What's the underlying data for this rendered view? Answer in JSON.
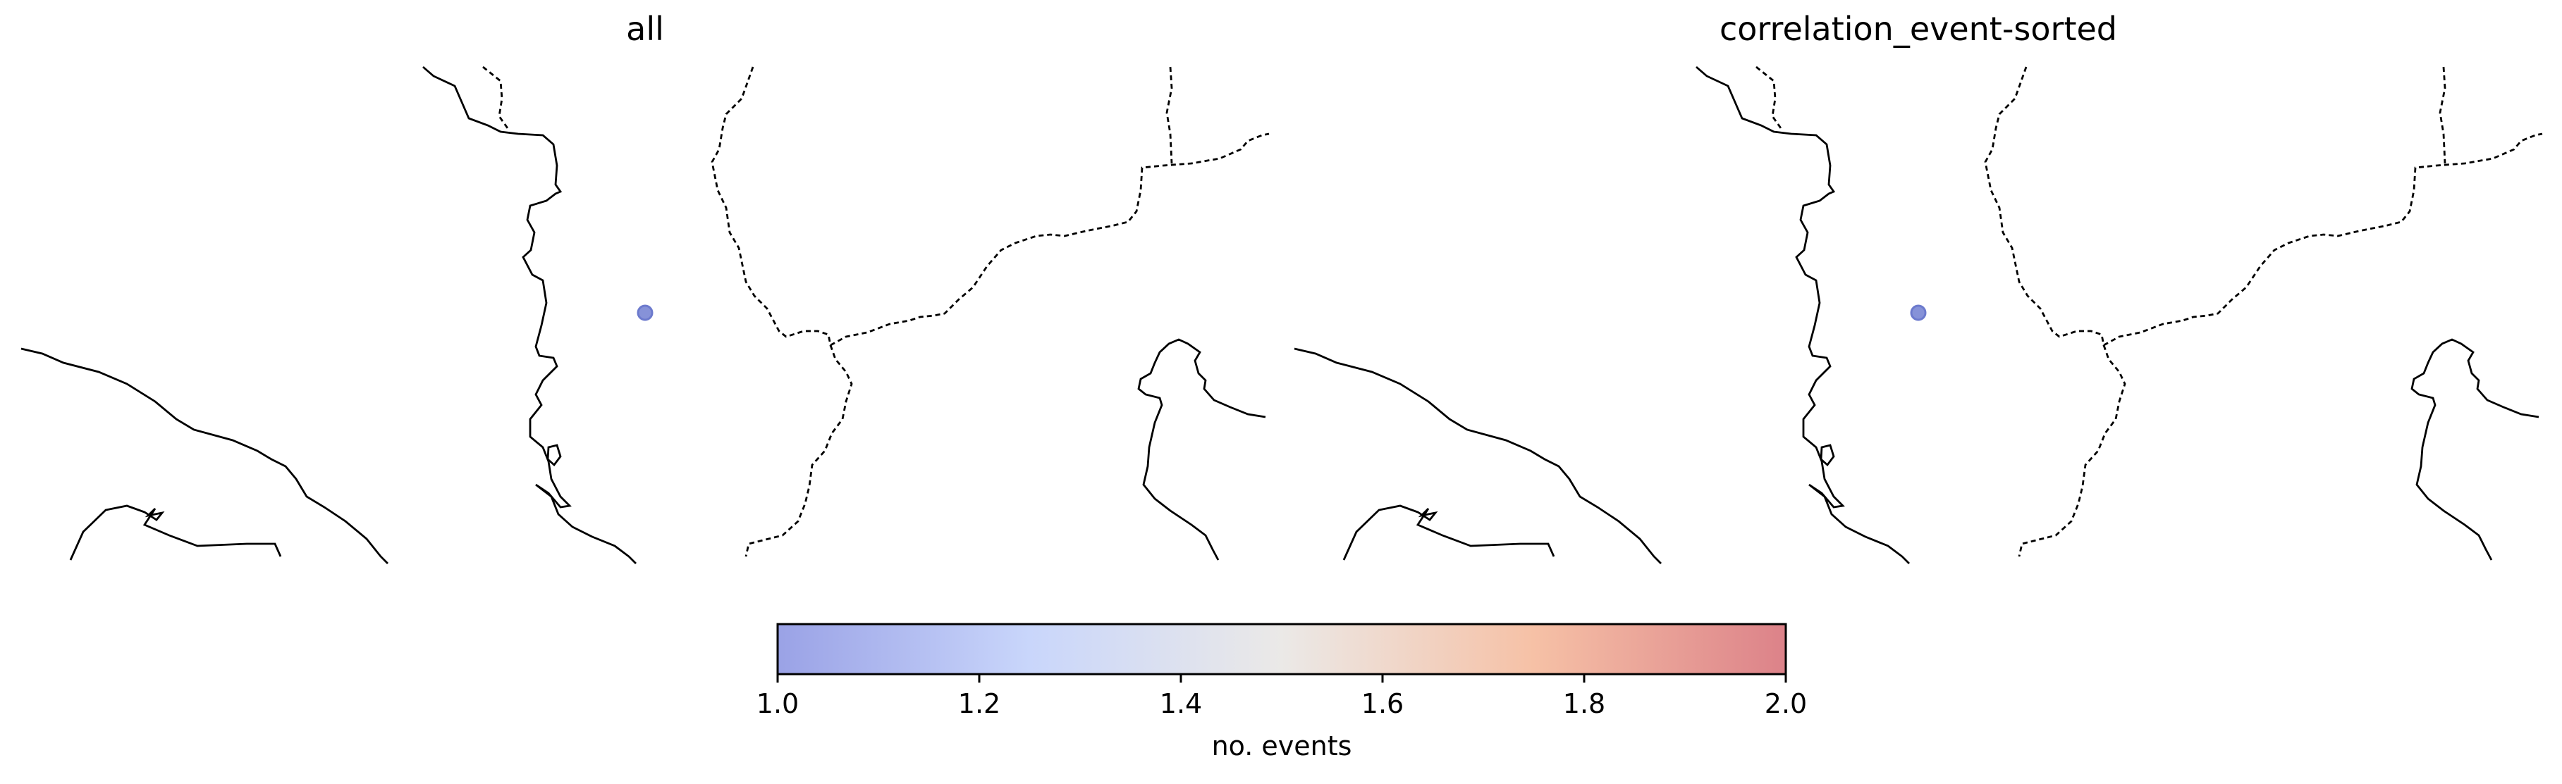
{
  "panels": [
    {
      "title": "all",
      "events": [
        {
          "count": 1
        }
      ]
    },
    {
      "title": "correlation_event-sorted",
      "events": [
        {
          "count": 1
        }
      ]
    }
  ],
  "colorbar": {
    "label": "no. events",
    "min": 1.0,
    "max": 2.0,
    "ticks": [
      "1.0",
      "1.2",
      "1.4",
      "1.6",
      "1.8",
      "2.0"
    ],
    "colormap": "coolwarm",
    "colors": [
      "#9aa2e6",
      "#c9d6fb",
      "#ebe9e7",
      "#f6c1a6",
      "#dc8289"
    ]
  },
  "styles": {
    "coastline_color": "#000000",
    "border_color": "#000000",
    "marker_fill": "#7a87d4",
    "marker_edge": "#5d6cc8"
  }
}
